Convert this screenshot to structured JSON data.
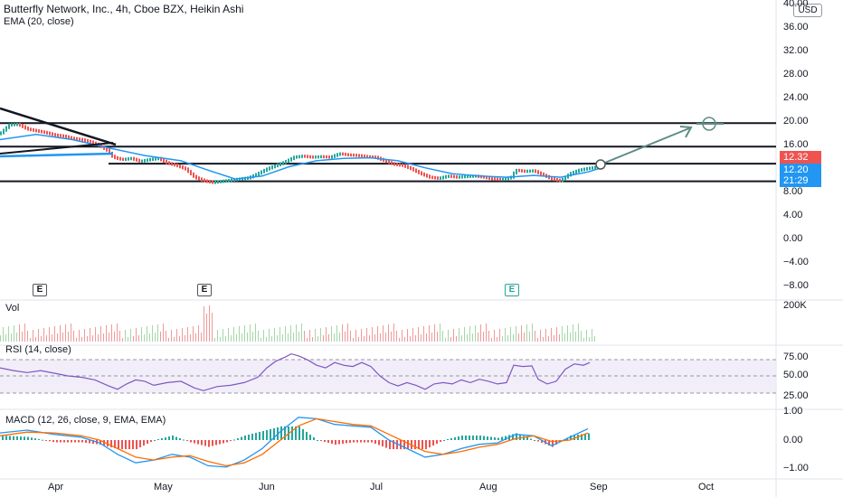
{
  "header": {
    "symbol_line": "Butterfly Network, Inc., 4h, Cboe BZX, Heikin Ashi",
    "ema_line": "EMA (20, close)"
  },
  "currency_button": "USD",
  "price_axis": {
    "ticks": [
      "40.00",
      "36.00",
      "32.00",
      "28.00",
      "24.00",
      "20.00",
      "16.00",
      "8.00",
      "4.00",
      "0.00",
      "−4.00",
      "−8.00"
    ],
    "tag_price": "12.32",
    "tag_ema": "12.20",
    "tag_countdown": "21:29",
    "tag_price_color": "#ef5350",
    "tag_ema_color": "#2196f3"
  },
  "earnings_badges": [
    "E",
    "E",
    "E"
  ],
  "volume": {
    "label": "Vol",
    "axis_tick": "200K"
  },
  "rsi": {
    "label": "RSI (14, close)",
    "ticks": [
      "75.00",
      "50.00",
      "25.00"
    ]
  },
  "macd": {
    "label": "MACD (12, 26, close, 9, EMA, EMA)",
    "ticks": [
      "1.00",
      "0.00",
      "−1.00"
    ]
  },
  "time_axis": [
    "Apr",
    "May",
    "Jun",
    "Jul",
    "Aug",
    "Sep",
    "Oct"
  ],
  "colors": {
    "up": "#26a69a",
    "down": "#ef5350",
    "ema": "#2196f3",
    "rsi_line": "#7e57c2",
    "macd_line": "#2196f3",
    "signal_line": "#ff6d00",
    "arrow": "#5b8c85"
  },
  "chart_data": {
    "type": "candlestick",
    "title": "Butterfly Network, Inc., 4h, Cboe BZX, Heikin Ashi",
    "price_range": [
      -8,
      40
    ],
    "price_series": [
      [
        0,
        18.0
      ],
      [
        10,
        19.5
      ],
      [
        20,
        19.6
      ],
      [
        30,
        18.8
      ],
      [
        40,
        18.5
      ],
      [
        50,
        18.2
      ],
      [
        60,
        17.8
      ],
      [
        70,
        17.6
      ],
      [
        80,
        17.2
      ],
      [
        90,
        17.0
      ],
      [
        100,
        16.6
      ],
      [
        110,
        16.0
      ],
      [
        118,
        15.2
      ],
      [
        125,
        14.0
      ],
      [
        135,
        13.6
      ],
      [
        145,
        13.8
      ],
      [
        155,
        13.3
      ],
      [
        165,
        13.6
      ],
      [
        175,
        13.8
      ],
      [
        185,
        13.0
      ],
      [
        195,
        12.6
      ],
      [
        205,
        12.0
      ],
      [
        215,
        10.6
      ],
      [
        225,
        10.0
      ],
      [
        235,
        9.7
      ],
      [
        245,
        9.9
      ],
      [
        255,
        10.1
      ],
      [
        265,
        10.3
      ],
      [
        275,
        10.5
      ],
      [
        285,
        11.2
      ],
      [
        295,
        12.0
      ],
      [
        305,
        12.6
      ],
      [
        315,
        13.2
      ],
      [
        325,
        14.0
      ],
      [
        335,
        14.2
      ],
      [
        345,
        14.0
      ],
      [
        355,
        14.1
      ],
      [
        365,
        14.0
      ],
      [
        375,
        14.6
      ],
      [
        385,
        14.4
      ],
      [
        395,
        14.3
      ],
      [
        405,
        14.1
      ],
      [
        415,
        14.0
      ],
      [
        425,
        13.4
      ],
      [
        435,
        12.8
      ],
      [
        445,
        12.6
      ],
      [
        455,
        12.0
      ],
      [
        465,
        11.2
      ],
      [
        475,
        10.6
      ],
      [
        485,
        10.4
      ],
      [
        495,
        10.8
      ],
      [
        505,
        10.6
      ],
      [
        515,
        10.7
      ],
      [
        525,
        10.8
      ],
      [
        535,
        10.6
      ],
      [
        545,
        10.3
      ],
      [
        555,
        10.2
      ],
      [
        565,
        10.6
      ],
      [
        570,
        11.8
      ],
      [
        580,
        11.6
      ],
      [
        590,
        11.7
      ],
      [
        600,
        11.0
      ],
      [
        610,
        10.3
      ],
      [
        620,
        10.0
      ],
      [
        630,
        11.2
      ],
      [
        640,
        11.8
      ],
      [
        650,
        12.1
      ],
      [
        660,
        12.3
      ]
    ],
    "ema_series": [
      [
        0,
        17.0
      ],
      [
        40,
        17.9
      ],
      [
        80,
        17.0
      ],
      [
        120,
        15.6
      ],
      [
        160,
        14.3
      ],
      [
        200,
        13.4
      ],
      [
        230,
        11.8
      ],
      [
        260,
        10.3
      ],
      [
        290,
        10.8
      ],
      [
        320,
        12.4
      ],
      [
        350,
        13.4
      ],
      [
        380,
        13.8
      ],
      [
        410,
        13.9
      ],
      [
        440,
        13.4
      ],
      [
        470,
        12.2
      ],
      [
        500,
        11.2
      ],
      [
        530,
        10.8
      ],
      [
        560,
        10.6
      ],
      [
        590,
        10.9
      ],
      [
        620,
        10.6
      ],
      [
        650,
        11.5
      ],
      [
        665,
        12.2
      ]
    ],
    "horizontal_levels": [
      {
        "price": 19.8,
        "x_from": 0
      },
      {
        "price": 15.8,
        "x_from": 0
      },
      {
        "price": 12.9,
        "x_from": 120
      },
      {
        "price": 9.9,
        "x_from": 0
      }
    ],
    "projection_target": 20.0,
    "rsi_series": [
      [
        0,
        62
      ],
      [
        15,
        58
      ],
      [
        30,
        55
      ],
      [
        45,
        58
      ],
      [
        60,
        54
      ],
      [
        75,
        50
      ],
      [
        90,
        48
      ],
      [
        105,
        44
      ],
      [
        120,
        35
      ],
      [
        130,
        30
      ],
      [
        140,
        38
      ],
      [
        150,
        44
      ],
      [
        160,
        42
      ],
      [
        170,
        36
      ],
      [
        185,
        40
      ],
      [
        200,
        42
      ],
      [
        215,
        32
      ],
      [
        225,
        28
      ],
      [
        240,
        34
      ],
      [
        255,
        36
      ],
      [
        270,
        40
      ],
      [
        285,
        48
      ],
      [
        295,
        62
      ],
      [
        305,
        72
      ],
      [
        315,
        78
      ],
      [
        322,
        83
      ],
      [
        330,
        80
      ],
      [
        340,
        74
      ],
      [
        350,
        66
      ],
      [
        360,
        62
      ],
      [
        370,
        70
      ],
      [
        380,
        66
      ],
      [
        390,
        64
      ],
      [
        400,
        70
      ],
      [
        410,
        64
      ],
      [
        420,
        50
      ],
      [
        430,
        40
      ],
      [
        440,
        35
      ],
      [
        450,
        40
      ],
      [
        460,
        36
      ],
      [
        470,
        30
      ],
      [
        480,
        38
      ],
      [
        490,
        40
      ],
      [
        500,
        38
      ],
      [
        510,
        44
      ],
      [
        520,
        40
      ],
      [
        530,
        45
      ],
      [
        540,
        42
      ],
      [
        550,
        38
      ],
      [
        560,
        40
      ],
      [
        568,
        66
      ],
      [
        578,
        64
      ],
      [
        588,
        65
      ],
      [
        595,
        45
      ],
      [
        605,
        38
      ],
      [
        615,
        42
      ],
      [
        625,
        60
      ],
      [
        635,
        68
      ],
      [
        645,
        66
      ],
      [
        652,
        70
      ]
    ],
    "macd_series": [
      [
        0,
        0.25
      ],
      [
        30,
        0.35
      ],
      [
        60,
        0.2
      ],
      [
        90,
        0.1
      ],
      [
        110,
        -0.1
      ],
      [
        130,
        -0.5
      ],
      [
        150,
        -0.8
      ],
      [
        170,
        -0.7
      ],
      [
        190,
        -0.5
      ],
      [
        210,
        -0.6
      ],
      [
        230,
        -0.9
      ],
      [
        250,
        -0.95
      ],
      [
        270,
        -0.7
      ],
      [
        290,
        -0.3
      ],
      [
        310,
        0.3
      ],
      [
        330,
        0.8
      ],
      [
        350,
        0.75
      ],
      [
        370,
        0.55
      ],
      [
        390,
        0.5
      ],
      [
        410,
        0.45
      ],
      [
        430,
        0.0
      ],
      [
        450,
        -0.3
      ],
      [
        470,
        -0.6
      ],
      [
        490,
        -0.5
      ],
      [
        510,
        -0.3
      ],
      [
        530,
        -0.15
      ],
      [
        550,
        -0.1
      ],
      [
        570,
        0.2
      ],
      [
        590,
        0.15
      ],
      [
        610,
        -0.2
      ],
      [
        630,
        0.1
      ],
      [
        650,
        0.4
      ]
    ],
    "signal_series": [
      [
        0,
        0.15
      ],
      [
        30,
        0.28
      ],
      [
        60,
        0.25
      ],
      [
        90,
        0.15
      ],
      [
        110,
        0.0
      ],
      [
        130,
        -0.3
      ],
      [
        150,
        -0.6
      ],
      [
        170,
        -0.7
      ],
      [
        190,
        -0.6
      ],
      [
        210,
        -0.55
      ],
      [
        230,
        -0.75
      ],
      [
        250,
        -0.9
      ],
      [
        270,
        -0.8
      ],
      [
        290,
        -0.5
      ],
      [
        310,
        0.0
      ],
      [
        330,
        0.5
      ],
      [
        350,
        0.75
      ],
      [
        370,
        0.65
      ],
      [
        390,
        0.55
      ],
      [
        410,
        0.5
      ],
      [
        430,
        0.2
      ],
      [
        450,
        -0.1
      ],
      [
        470,
        -0.4
      ],
      [
        490,
        -0.5
      ],
      [
        510,
        -0.4
      ],
      [
        530,
        -0.25
      ],
      [
        550,
        -0.15
      ],
      [
        570,
        0.05
      ],
      [
        590,
        0.15
      ],
      [
        610,
        -0.05
      ],
      [
        630,
        0.0
      ],
      [
        650,
        0.25
      ]
    ]
  }
}
